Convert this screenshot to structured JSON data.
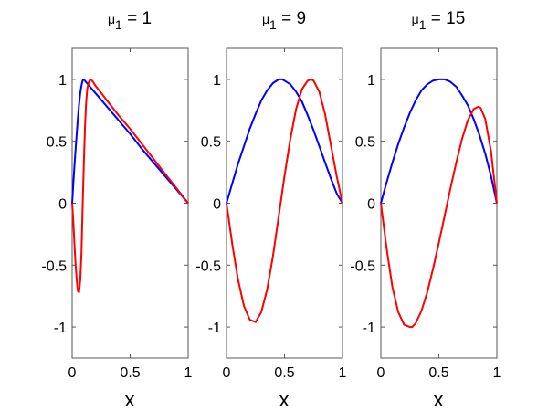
{
  "chart_data": [
    {
      "type": "line",
      "title_symbol": "μ",
      "title_subscript": "1",
      "title_rest": " = 1",
      "xlabel": "x",
      "xlim": [
        0,
        1
      ],
      "ylim": [
        -1.25,
        1.25
      ],
      "xticks": [
        0,
        0.5,
        1
      ],
      "xtick_labels": [
        "0",
        "0.5",
        "1"
      ],
      "yticks": [
        -1,
        -0.5,
        0,
        0.5,
        1
      ],
      "ytick_labels": [
        "-1",
        "-0.5",
        "0",
        "0.5",
        "1"
      ],
      "grid": false,
      "series": [
        {
          "color": "#0000ff",
          "x": [
            0,
            0.01,
            0.02,
            0.03,
            0.04,
            0.05,
            0.06,
            0.07,
            0.08,
            0.09,
            0.1,
            0.2,
            0.3,
            0.4,
            0.5,
            0.6,
            0.7,
            0.8,
            0.9,
            1.0
          ],
          "y": [
            0,
            0.16,
            0.3,
            0.44,
            0.57,
            0.69,
            0.8,
            0.89,
            0.95,
            0.99,
            1.0,
            0.89,
            0.78,
            0.67,
            0.56,
            0.44,
            0.33,
            0.22,
            0.11,
            0
          ]
        },
        {
          "color": "#ff0000",
          "x": [
            0,
            0.01,
            0.02,
            0.03,
            0.04,
            0.05,
            0.06,
            0.07,
            0.08,
            0.09,
            0.1,
            0.11,
            0.12,
            0.13,
            0.14,
            0.15,
            0.16,
            0.18,
            0.2,
            0.25,
            0.3,
            0.4,
            0.5,
            0.6,
            0.7,
            0.8,
            0.9,
            1.0
          ],
          "y": [
            0,
            -0.15,
            -0.33,
            -0.5,
            -0.63,
            -0.71,
            -0.72,
            -0.62,
            -0.4,
            -0.05,
            0.3,
            0.6,
            0.8,
            0.92,
            0.97,
            0.99,
            1.0,
            0.98,
            0.95,
            0.89,
            0.83,
            0.71,
            0.6,
            0.48,
            0.36,
            0.24,
            0.12,
            0
          ]
        }
      ]
    },
    {
      "type": "line",
      "title_symbol": "μ",
      "title_subscript": "1",
      "title_rest": " = 9",
      "xlabel": "x",
      "xlim": [
        0,
        1
      ],
      "ylim": [
        -1.25,
        1.25
      ],
      "xticks": [
        0,
        0.5,
        1
      ],
      "xtick_labels": [
        "0",
        "0.5",
        "1"
      ],
      "yticks": [
        -1,
        -0.5,
        0,
        0.5,
        1
      ],
      "ytick_labels": [
        "-1",
        "-0.5",
        "0",
        "0.5",
        "1"
      ],
      "grid": false,
      "series": [
        {
          "color": "#0000ff",
          "x": [
            0,
            0.05,
            0.1,
            0.15,
            0.2,
            0.25,
            0.3,
            0.35,
            0.4,
            0.45,
            0.48,
            0.5,
            0.55,
            0.6,
            0.65,
            0.7,
            0.75,
            0.8,
            0.85,
            0.9,
            0.95,
            1.0
          ],
          "y": [
            0,
            0.16,
            0.32,
            0.46,
            0.6,
            0.72,
            0.83,
            0.91,
            0.97,
            1.0,
            1.0,
            0.99,
            0.96,
            0.9,
            0.82,
            0.71,
            0.59,
            0.46,
            0.33,
            0.2,
            0.08,
            0
          ]
        },
        {
          "color": "#ff0000",
          "x": [
            0,
            0.05,
            0.1,
            0.15,
            0.2,
            0.25,
            0.3,
            0.35,
            0.4,
            0.45,
            0.5,
            0.55,
            0.6,
            0.65,
            0.7,
            0.73,
            0.75,
            0.8,
            0.85,
            0.9,
            0.95,
            1.0
          ],
          "y": [
            0,
            -0.33,
            -0.62,
            -0.83,
            -0.94,
            -0.96,
            -0.88,
            -0.7,
            -0.43,
            -0.11,
            0.22,
            0.52,
            0.76,
            0.92,
            0.99,
            1.0,
            0.99,
            0.9,
            0.72,
            0.47,
            0.22,
            0
          ]
        }
      ]
    },
    {
      "type": "line",
      "title_symbol": "μ",
      "title_subscript": "1",
      "title_rest": " = 15",
      "xlabel": "x",
      "xlim": [
        0,
        1
      ],
      "ylim": [
        -1.25,
        1.25
      ],
      "xticks": [
        0,
        0.5,
        1
      ],
      "xtick_labels": [
        "0",
        "0.5",
        "1"
      ],
      "yticks": [
        -1,
        -0.5,
        0,
        0.5,
        1
      ],
      "ytick_labels": [
        "-1",
        "-0.5",
        "0",
        "0.5",
        "1"
      ],
      "grid": false,
      "series": [
        {
          "color": "#0000ff",
          "x": [
            0,
            0.05,
            0.1,
            0.15,
            0.2,
            0.25,
            0.3,
            0.35,
            0.4,
            0.45,
            0.5,
            0.55,
            0.6,
            0.65,
            0.7,
            0.75,
            0.8,
            0.85,
            0.9,
            0.95,
            1.0
          ],
          "y": [
            0,
            0.17,
            0.33,
            0.48,
            0.61,
            0.73,
            0.83,
            0.91,
            0.96,
            0.99,
            1.0,
            1.0,
            0.98,
            0.94,
            0.87,
            0.79,
            0.68,
            0.55,
            0.4,
            0.22,
            0
          ]
        },
        {
          "color": "#ff0000",
          "x": [
            0,
            0.05,
            0.1,
            0.15,
            0.2,
            0.25,
            0.27,
            0.3,
            0.35,
            0.4,
            0.45,
            0.5,
            0.55,
            0.6,
            0.65,
            0.7,
            0.75,
            0.8,
            0.84,
            0.86,
            0.9,
            0.95,
            1.0
          ],
          "y": [
            0,
            -0.37,
            -0.68,
            -0.88,
            -0.98,
            -1.0,
            -1.0,
            -0.97,
            -0.87,
            -0.72,
            -0.53,
            -0.32,
            -0.1,
            0.12,
            0.33,
            0.52,
            0.67,
            0.76,
            0.78,
            0.77,
            0.68,
            0.42,
            0
          ]
        }
      ]
    }
  ]
}
